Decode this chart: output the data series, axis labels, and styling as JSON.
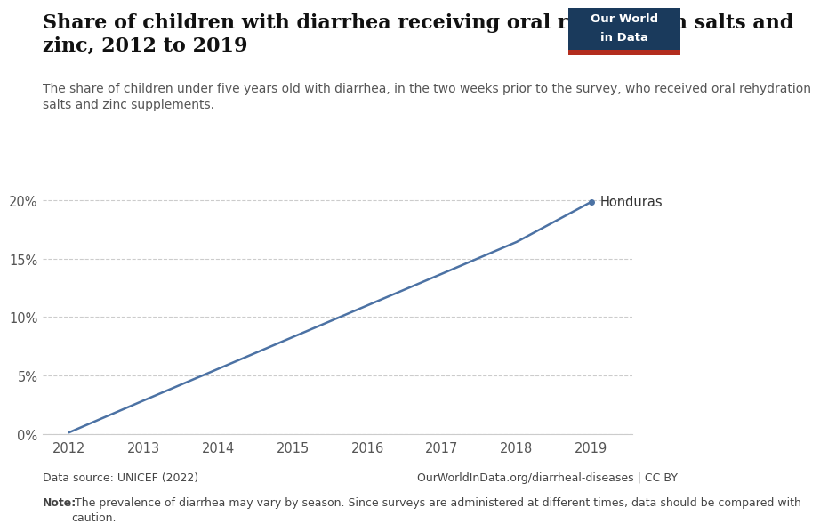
{
  "title": "Share of children with diarrhea receiving oral rehydration salts and\nzinc, 2012 to 2019",
  "subtitle": "The share of children under five years old with diarrhea, in the two weeks prior to the survey, who received oral rehydration\nsalts and zinc supplements.",
  "country": "Honduras",
  "years": [
    2012,
    2013,
    2014,
    2015,
    2016,
    2017,
    2018,
    2019
  ],
  "values": [
    0.12,
    2.86,
    5.57,
    8.29,
    11.0,
    13.71,
    16.43,
    19.86
  ],
  "line_color": "#4C72A4",
  "background_color": "#ffffff",
  "ylim": [
    0,
    21
  ],
  "yticks": [
    0,
    5,
    10,
    15,
    20
  ],
  "ytick_labels": [
    "0%",
    "5%",
    "10%",
    "15%",
    "20%"
  ],
  "xticks": [
    2012,
    2013,
    2014,
    2015,
    2016,
    2017,
    2018,
    2019
  ],
  "data_source": "Data source: UNICEF (2022)",
  "url": "OurWorldInData.org/diarrheal-diseases | CC BY",
  "note_bold": "Note:",
  "note_rest": " The prevalence of diarrhea may vary by season. Since surveys are administered at different times, data should be compared with\ncaution.",
  "owid_box_color": "#1a3a5c",
  "owid_red": "#b32d1e",
  "title_fontsize": 16,
  "subtitle_fontsize": 10,
  "tick_fontsize": 10.5,
  "footer_fontsize": 9
}
